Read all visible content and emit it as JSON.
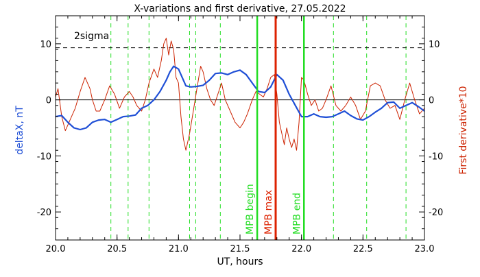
{
  "chart_data": {
    "type": "line",
    "title": "X-variations and first derivative, 27.05.2022",
    "xlabel": "UT, hours",
    "ylabel_left": "deltaX, nT",
    "ylabel_right": "First derivative*10",
    "xlim": [
      20.0,
      23.0
    ],
    "ylim": [
      -25,
      15
    ],
    "x_ticks": [
      "20.0",
      "20.5",
      "21.0",
      "21.5",
      "22.0",
      "22.5",
      "23.0"
    ],
    "y_ticks": [
      "-20",
      "-10",
      "0",
      "10"
    ],
    "sigma_label": "2sigma",
    "sigma_level": 9.3,
    "zero_line": 0,
    "colors": {
      "deltaX": "#1f4fd6",
      "derivative": "#cc2200",
      "mpb": "#22dd22",
      "mpb_max": "#dd2200",
      "axis": "#000000",
      "sigma": "#000000"
    },
    "dashed_verticals": [
      20.45,
      20.59,
      20.76,
      21.09,
      21.14,
      21.34,
      21.64,
      22.02,
      22.26,
      22.53,
      22.85
    ],
    "markers": [
      {
        "x": 21.64,
        "label": "MPB begin",
        "color": "#22dd22"
      },
      {
        "x": 21.79,
        "label": "MPB max",
        "color": "#dd2200"
      },
      {
        "x": 22.02,
        "label": "MPB end",
        "color": "#22dd22"
      }
    ],
    "series": [
      {
        "name": "deltaX, nT",
        "x": [
          20.0,
          20.05,
          20.1,
          20.15,
          20.2,
          20.25,
          20.3,
          20.35,
          20.4,
          20.45,
          20.5,
          20.55,
          20.6,
          20.65,
          20.7,
          20.75,
          20.8,
          20.85,
          20.9,
          20.93,
          20.96,
          21.0,
          21.03,
          21.06,
          21.1,
          21.15,
          21.2,
          21.25,
          21.3,
          21.35,
          21.4,
          21.45,
          21.5,
          21.55,
          21.6,
          21.65,
          21.7,
          21.75,
          21.8,
          21.85,
          21.9,
          21.95,
          22.0,
          22.05,
          22.1,
          22.15,
          22.2,
          22.25,
          22.3,
          22.35,
          22.4,
          22.45,
          22.5,
          22.55,
          22.6,
          22.65,
          22.7,
          22.75,
          22.8,
          22.85,
          22.9,
          22.95,
          23.0
        ],
        "y": [
          -3.0,
          -2.8,
          -4.0,
          -5.0,
          -5.3,
          -5.0,
          -4.0,
          -3.6,
          -3.5,
          -4.0,
          -3.5,
          -3.0,
          -2.9,
          -2.7,
          -1.5,
          -1.0,
          0.0,
          1.5,
          3.5,
          5.0,
          6.0,
          5.5,
          4.0,
          2.5,
          2.3,
          2.4,
          2.6,
          3.5,
          4.7,
          4.8,
          4.5,
          5.0,
          5.3,
          4.5,
          3.0,
          1.5,
          1.3,
          2.3,
          4.5,
          3.5,
          1.0,
          -1.0,
          -3.0,
          -3.0,
          -2.5,
          -3.0,
          -3.1,
          -3.0,
          -2.5,
          -2.0,
          -2.8,
          -3.4,
          -3.6,
          -3.0,
          -2.2,
          -1.5,
          -0.5,
          -0.4,
          -1.5,
          -1.0,
          -0.5,
          -1.2,
          -2.0
        ]
      },
      {
        "name": "First derivative*10",
        "x": [
          20.0,
          20.02,
          20.05,
          20.08,
          20.1,
          20.13,
          20.16,
          20.2,
          20.24,
          20.28,
          20.3,
          20.33,
          20.36,
          20.4,
          20.44,
          20.48,
          20.52,
          20.56,
          20.6,
          20.63,
          20.66,
          20.7,
          20.73,
          20.76,
          20.8,
          20.83,
          20.86,
          20.88,
          20.9,
          20.92,
          20.94,
          20.96,
          20.98,
          21.0,
          21.02,
          21.04,
          21.06,
          21.09,
          21.12,
          21.15,
          21.18,
          21.2,
          21.23,
          21.26,
          21.29,
          21.32,
          21.35,
          21.38,
          21.42,
          21.46,
          21.5,
          21.53,
          21.56,
          21.6,
          21.63,
          21.66,
          21.69,
          21.72,
          21.75,
          21.78,
          21.8,
          21.82,
          21.84,
          21.86,
          21.88,
          21.9,
          21.92,
          21.94,
          21.96,
          21.98,
          22.0,
          22.02,
          22.05,
          22.08,
          22.11,
          22.14,
          22.17,
          22.2,
          22.24,
          22.28,
          22.32,
          22.36,
          22.4,
          22.44,
          22.48,
          22.52,
          22.56,
          22.6,
          22.64,
          22.68,
          22.72,
          22.76,
          22.8,
          22.84,
          22.88,
          22.92,
          22.96,
          23.0
        ],
        "y": [
          0.5,
          2.0,
          -3.0,
          -5.5,
          -4.5,
          -3.0,
          -1.5,
          1.5,
          4.0,
          2.0,
          0.0,
          -2.0,
          -2.0,
          0.0,
          2.5,
          1.0,
          -1.5,
          0.5,
          1.5,
          0.5,
          -1.0,
          -2.0,
          0.0,
          3.0,
          5.5,
          4.0,
          7.0,
          10.0,
          11.0,
          8.0,
          10.5,
          9.0,
          4.0,
          3.0,
          -3.0,
          -7.0,
          -9.0,
          -6.0,
          -2.0,
          2.0,
          6.0,
          5.0,
          2.0,
          0.0,
          -1.0,
          1.0,
          3.0,
          0.0,
          -2.0,
          -4.0,
          -5.0,
          -4.0,
          -2.5,
          0.0,
          1.5,
          1.0,
          0.5,
          2.0,
          4.0,
          4.5,
          1.0,
          -4.0,
          -6.0,
          -8.0,
          -5.0,
          -7.0,
          -8.5,
          -7.0,
          -9.0,
          -4.0,
          4.0,
          3.5,
          1.0,
          -1.0,
          0.0,
          -2.0,
          -1.5,
          0.0,
          2.5,
          -1.0,
          -2.0,
          -1.0,
          0.5,
          -1.0,
          -3.5,
          -2.0,
          2.5,
          3.0,
          2.5,
          0.0,
          -1.5,
          -1.0,
          -3.5,
          0.0,
          3.0,
          0.0,
          -2.5,
          -1.5
        ]
      }
    ]
  }
}
